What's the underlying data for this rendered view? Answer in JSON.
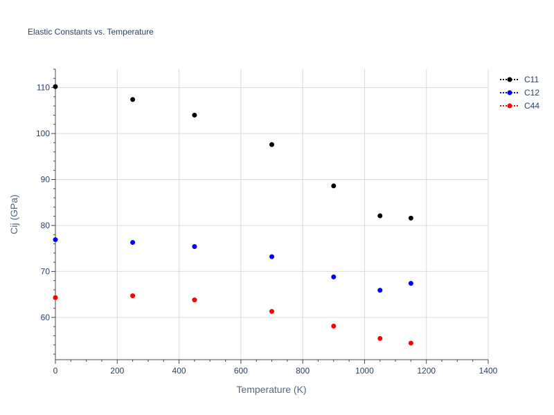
{
  "chart_data": {
    "type": "scatter",
    "title": "Elastic Constants vs. Temperature",
    "xlabel": "Temperature (K)",
    "ylabel": "Cij (GPa)",
    "xlim": [
      0,
      1400
    ],
    "ylim": [
      50.8,
      114.0
    ],
    "xticks": [
      0,
      200,
      400,
      600,
      800,
      1000,
      1200,
      1400
    ],
    "yticks": [
      60,
      70,
      80,
      90,
      100,
      110
    ],
    "grid": true,
    "legend_position": "top-right",
    "series": [
      {
        "name": "C11",
        "color": "#000000",
        "x": [
          0,
          250,
          450,
          700,
          900,
          1050,
          1150
        ],
        "y": [
          110.2,
          107.4,
          104.0,
          97.6,
          88.6,
          82.1,
          81.6
        ]
      },
      {
        "name": "C12",
        "color": "#0000ff",
        "x": [
          0,
          250,
          450,
          700,
          900,
          1050,
          1150
        ],
        "y": [
          76.9,
          76.3,
          75.4,
          73.2,
          68.8,
          65.9,
          67.4
        ]
      },
      {
        "name": "C44",
        "color": "#ff0000",
        "x": [
          0,
          250,
          450,
          700,
          900,
          1050,
          1150
        ],
        "y": [
          64.3,
          64.7,
          63.8,
          61.3,
          58.1,
          55.4,
          54.4
        ]
      }
    ]
  }
}
